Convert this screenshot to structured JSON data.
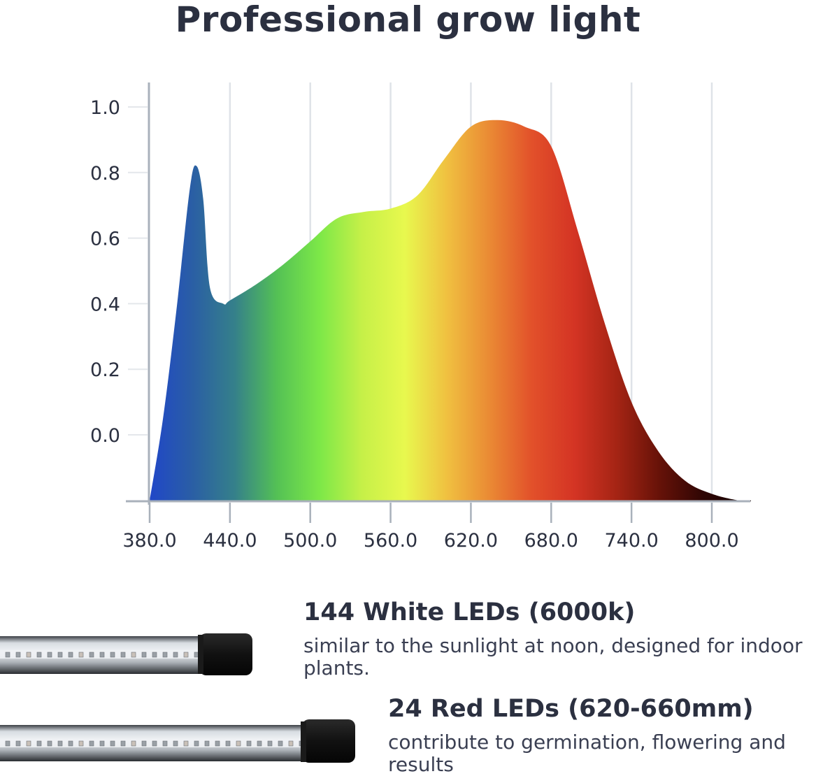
{
  "title": "Professional grow light",
  "chart_data": {
    "type": "area",
    "title": "Professional grow light",
    "xlabel": "",
    "ylabel": "",
    "x_ticks": [
      "380.0",
      "440.0",
      "500.0",
      "560.0",
      "620.0",
      "680.0",
      "740.0",
      "800.0"
    ],
    "y_ticks": [
      "0.0",
      "0.2",
      "0.4",
      "0.6",
      "0.8",
      "1.0"
    ],
    "xlim": [
      380,
      830
    ],
    "ylim": [
      -0.2,
      1.08
    ],
    "grid": "vertical",
    "series": [
      {
        "x": [
          380,
          390,
          400,
          410,
          415,
          420,
          425,
          435,
          440,
          460,
          480,
          500,
          520,
          540,
          560,
          580,
          600,
          620,
          640,
          660,
          680,
          700,
          720,
          740,
          760,
          780,
          800,
          820,
          830
        ],
        "values": [
          -0.2,
          0.05,
          0.38,
          0.75,
          0.82,
          0.72,
          0.45,
          0.4,
          0.41,
          0.46,
          0.52,
          0.59,
          0.66,
          0.68,
          0.69,
          0.73,
          0.84,
          0.94,
          0.96,
          0.94,
          0.88,
          0.62,
          0.34,
          0.1,
          -0.05,
          -0.14,
          -0.18,
          -0.2,
          -0.2
        ]
      }
    ],
    "gradient_colors": [
      "#2047c8",
      "#2a5ea5",
      "#35808a",
      "#54c155",
      "#7de848",
      "#c6f048",
      "#e8f84e",
      "#f0c040",
      "#ea8a34",
      "#e2502a",
      "#d43424",
      "#a42414",
      "#661208",
      "#300604",
      "#140202"
    ]
  },
  "leds": [
    {
      "title": "144 White LEDs (6000k)",
      "description": "similar to the sunlight at noon, designed for indoor plants."
    },
    {
      "title": "24 Red LEDs (620-660mm)",
      "description": "contribute to germination, flowering and results"
    }
  ]
}
